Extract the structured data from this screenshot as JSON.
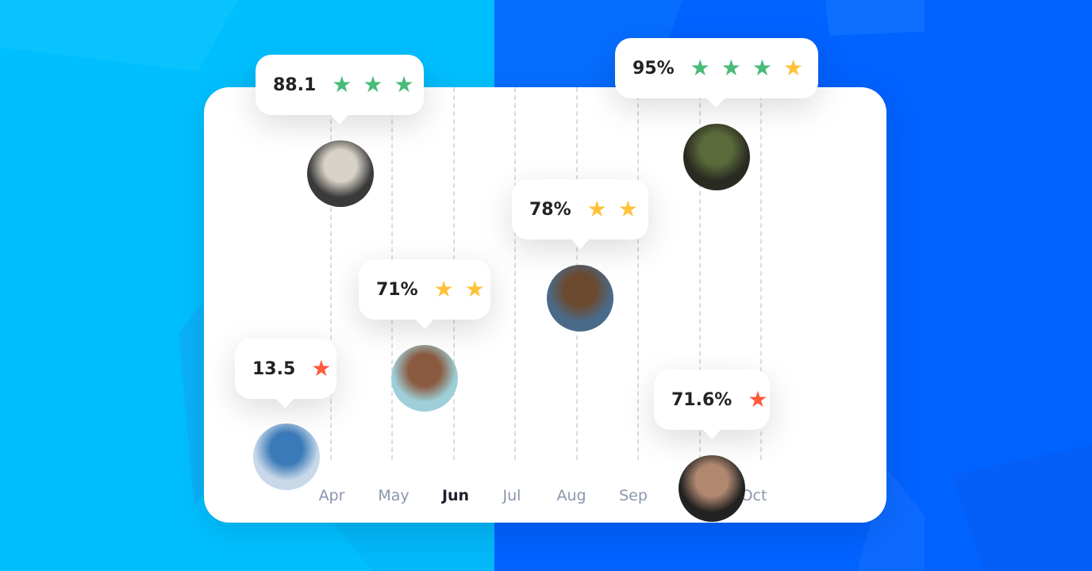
{
  "colors": {
    "left_bg": "#00bfff",
    "right_bg": "#0062ff",
    "star_green": "#48bb78",
    "star_yellow": "#ffc23a",
    "star_red": "#ff5a3c"
  },
  "months": [
    {
      "label": "Apr",
      "active": false
    },
    {
      "label": "May",
      "active": false
    },
    {
      "label": "Jun",
      "active": true
    },
    {
      "label": "Jul",
      "active": false
    },
    {
      "label": "Aug",
      "active": false
    },
    {
      "label": "Sep",
      "active": false
    },
    {
      "label": "Oct",
      "active": false
    }
  ],
  "ratings": [
    {
      "value": "88.1",
      "stars": [
        "green",
        "green",
        "green"
      ],
      "avatar": "man-in-keffiyeh"
    },
    {
      "value": "95%",
      "stars": [
        "green",
        "green",
        "green",
        "yellow"
      ],
      "avatar": "woman-in-hijab"
    },
    {
      "value": "78%",
      "stars": [
        "yellow",
        "yellow"
      ],
      "avatar": "man-with-glasses"
    },
    {
      "value": "71%",
      "stars": [
        "yellow",
        "yellow"
      ],
      "avatar": "woman-with-glasses"
    },
    {
      "value": "13.5",
      "stars": [
        "red"
      ],
      "avatar": "bearded-man"
    },
    {
      "value": "71.6%",
      "stars": [
        "red"
      ],
      "avatar": "older-man"
    }
  ]
}
